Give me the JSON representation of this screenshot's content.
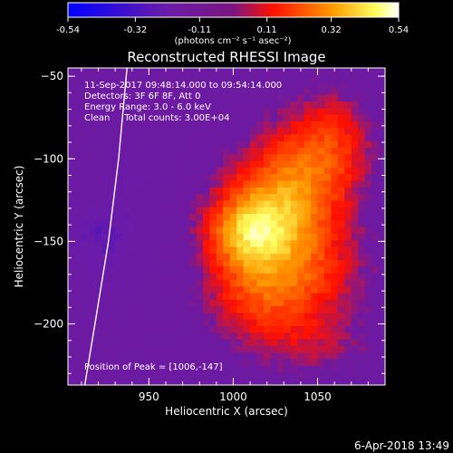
{
  "chart_data": {
    "type": "heatmap",
    "title": "Reconstructed RHESSI Image",
    "xlabel": "Heliocentric X (arcsec)",
    "ylabel": "Heliocentric Y (arcsec)",
    "xlim": [
      902,
      1090
    ],
    "ylim": [
      -237,
      -45
    ],
    "x_ticks": [
      950,
      1000,
      1050
    ],
    "y_ticks": [
      -50,
      -100,
      -150,
      -200
    ],
    "colorbar": {
      "range": [
        -0.54,
        0.54
      ],
      "tick_values": [
        -0.54,
        -0.32,
        -0.11,
        0.11,
        0.32,
        0.54
      ],
      "tick_labels": [
        "-0.54",
        "-0.32",
        "-0.11",
        "0.11",
        "0.32",
        "0.54"
      ],
      "label": "(photons cm⁻² s⁻¹ asec⁻²)"
    },
    "info_lines": [
      "11-Sep-2017 09:48:14.000 to 09:54:14.000",
      "Detectors: 3F 6F 8F, Att 0",
      "Energy Range: 3.0 - 6.0 keV",
      "Clean     Total counts: 3.00E+04"
    ],
    "peak_label": "Position of Peak = [1006,-147]",
    "peak": {
      "x": 1006,
      "y": -147,
      "value": 0.54
    },
    "grid": false,
    "limb_curve": [
      [
        937,
        -45
      ],
      [
        932,
        -100
      ],
      [
        926,
        -150
      ],
      [
        918,
        -200
      ],
      [
        912,
        -237
      ]
    ],
    "blobs": [
      {
        "x": 1006,
        "y": -147,
        "sx": 18,
        "sy": 16,
        "amp": 0.3
      },
      {
        "x": 1020,
        "y": -128,
        "sx": 24,
        "sy": 22,
        "amp": 0.2
      },
      {
        "x": 1038,
        "y": -110,
        "sx": 22,
        "sy": 28,
        "amp": 0.2
      },
      {
        "x": 1040,
        "y": -170,
        "sx": 26,
        "sy": 24,
        "amp": 0.22
      },
      {
        "x": 1010,
        "y": -185,
        "sx": 22,
        "sy": 20,
        "amp": 0.18
      },
      {
        "x": 1060,
        "y": -90,
        "sx": 16,
        "sy": 22,
        "amp": 0.15
      },
      {
        "x": 1045,
        "y": -215,
        "sx": 24,
        "sy": 14,
        "amp": 0.1
      },
      {
        "x": 920,
        "y": -150,
        "sx": 16,
        "sy": 20,
        "amp": -0.18
      },
      {
        "x": 940,
        "y": -110,
        "sx": 14,
        "sy": 14,
        "amp": -0.08
      }
    ],
    "background_level": -0.07
  },
  "timestamp": "6-Apr-2018 13:49",
  "colors": {
    "colormap": [
      "#0000ff",
      "#6a1ba8",
      "#6e19a0",
      "#ff1000",
      "#ff9a00",
      "#ffff60",
      "#ffffff"
    ],
    "axis": "#ffffff",
    "background": "#000000"
  }
}
